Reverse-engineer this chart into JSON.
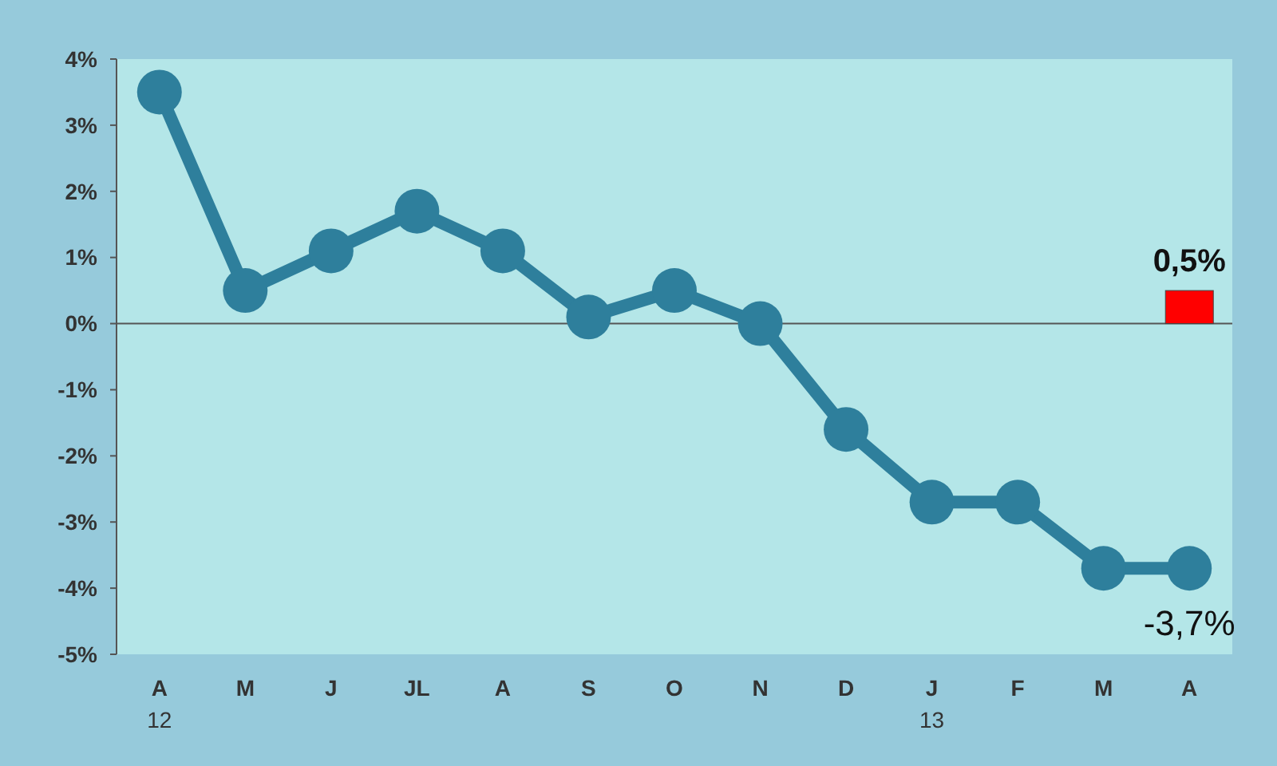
{
  "chart_data": {
    "type": "line",
    "categories": [
      "A\n12",
      "M",
      "J",
      "JL",
      "A",
      "S",
      "O",
      "N",
      "D",
      "J\n13",
      "F",
      "M",
      "A"
    ],
    "ylim": [
      -5,
      4
    ],
    "yticks": [
      {
        "value": -5,
        "label": "-5%"
      },
      {
        "value": -4,
        "label": "-4%"
      },
      {
        "value": -3,
        "label": "-3%"
      },
      {
        "value": -2,
        "label": "-2%"
      },
      {
        "value": -1,
        "label": "-1%"
      },
      {
        "value": 0,
        "label": "0%"
      },
      {
        "value": 1,
        "label": "1%"
      },
      {
        "value": 2,
        "label": "2%"
      },
      {
        "value": 3,
        "label": "3%"
      },
      {
        "value": 4,
        "label": "4%"
      }
    ],
    "grid": false,
    "marker": "circle",
    "line_style": "solid",
    "ref_lines": [
      {
        "axis": "y",
        "value": 0,
        "color": "#555555"
      }
    ],
    "series": [
      {
        "color": "#2e7f9c",
        "values": [
          3.5,
          0.5,
          1.1,
          1.7,
          1.1,
          0.1,
          0.5,
          0.0,
          -1.6,
          -2.7,
          -2.7,
          -3.7,
          -3.7
        ],
        "value_labels": [
          null,
          null,
          null,
          null,
          null,
          null,
          null,
          null,
          null,
          null,
          null,
          null,
          "-3,7%"
        ]
      },
      {
        "type": "bar",
        "color": "#ff0000",
        "values": [
          null,
          null,
          null,
          null,
          null,
          null,
          null,
          null,
          null,
          null,
          null,
          null,
          0.5
        ],
        "value_labels": [
          null,
          null,
          null,
          null,
          null,
          null,
          null,
          null,
          null,
          null,
          null,
          null,
          "0,5%"
        ]
      }
    ]
  }
}
